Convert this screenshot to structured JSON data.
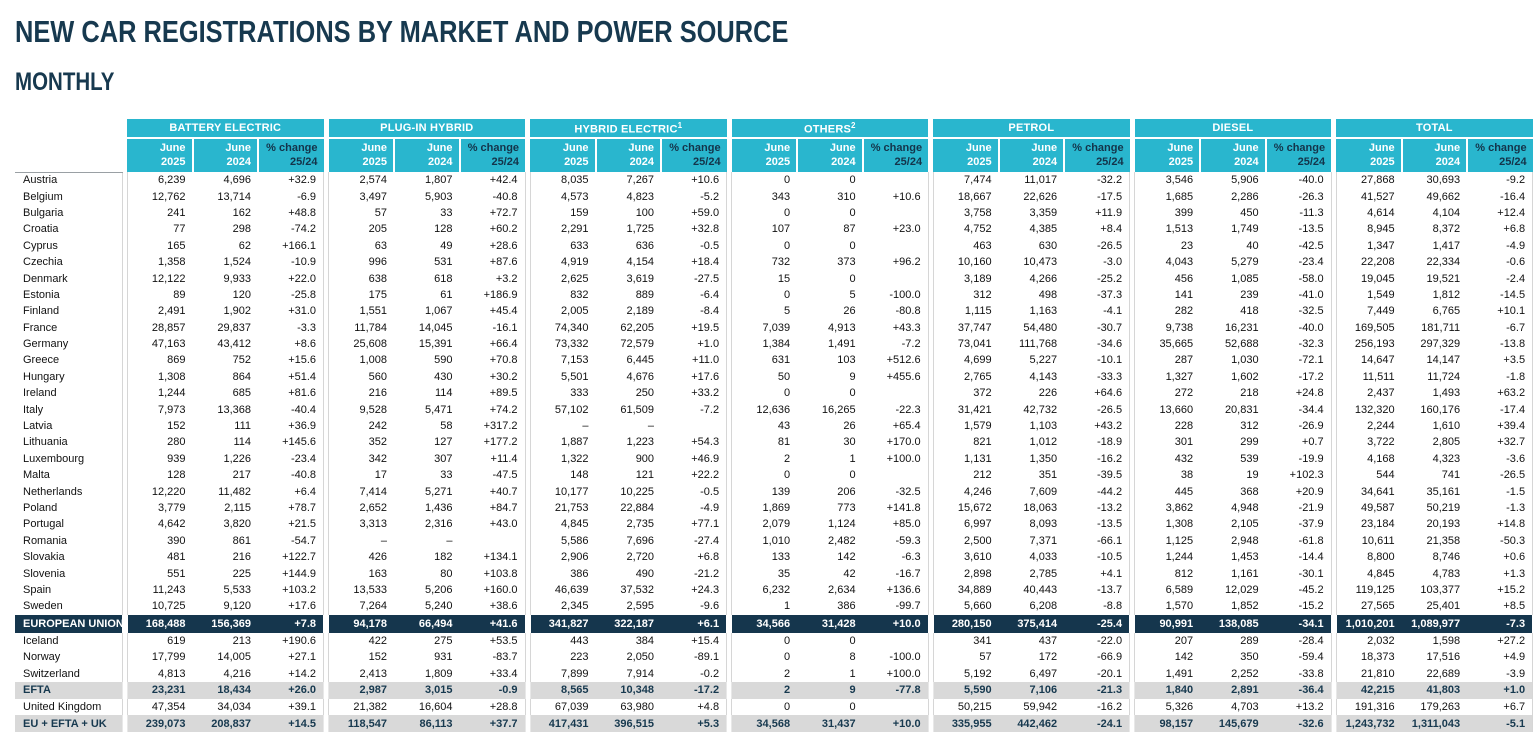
{
  "title": "NEW CAR REGISTRATIONS BY MARKET AND POWER SOURCE",
  "subtitle": "MONTHLY",
  "colors": {
    "teal": "#29b6ce",
    "navy": "#15364d",
    "band_gray": "#d9d9d9"
  },
  "table": {
    "groups": [
      {
        "label": "BATTERY ELECTRIC"
      },
      {
        "label": "PLUG-IN HYBRID"
      },
      {
        "label": "HYBRID ELECTRIC",
        "sup": "1"
      },
      {
        "label": "OTHERS",
        "sup": "2"
      },
      {
        "label": "PETROL"
      },
      {
        "label": "DIESEL"
      },
      {
        "label": "TOTAL"
      }
    ],
    "subcolumns": [
      {
        "line1": "June",
        "line2": "2025",
        "style": "month"
      },
      {
        "line1": "June",
        "line2": "2024",
        "style": "month"
      },
      {
        "line1": "% change",
        "line2": "25/24",
        "style": "pct"
      }
    ],
    "rows": [
      {
        "name": "Austria",
        "type": "country",
        "values": [
          "6,239",
          "4,696",
          "+32.9",
          "2,574",
          "1,807",
          "+42.4",
          "8,035",
          "7,267",
          "+10.6",
          "0",
          "0",
          "",
          "7,474",
          "11,017",
          "-32.2",
          "3,546",
          "5,906",
          "-40.0",
          "27,868",
          "30,693",
          "-9.2"
        ]
      },
      {
        "name": "Belgium",
        "type": "country",
        "values": [
          "12,762",
          "13,714",
          "-6.9",
          "3,497",
          "5,903",
          "-40.8",
          "4,573",
          "4,823",
          "-5.2",
          "343",
          "310",
          "+10.6",
          "18,667",
          "22,626",
          "-17.5",
          "1,685",
          "2,286",
          "-26.3",
          "41,527",
          "49,662",
          "-16.4"
        ]
      },
      {
        "name": "Bulgaria",
        "type": "country",
        "values": [
          "241",
          "162",
          "+48.8",
          "57",
          "33",
          "+72.7",
          "159",
          "100",
          "+59.0",
          "0",
          "0",
          "",
          "3,758",
          "3,359",
          "+11.9",
          "399",
          "450",
          "-11.3",
          "4,614",
          "4,104",
          "+12.4"
        ]
      },
      {
        "name": "Croatia",
        "type": "country",
        "values": [
          "77",
          "298",
          "-74.2",
          "205",
          "128",
          "+60.2",
          "2,291",
          "1,725",
          "+32.8",
          "107",
          "87",
          "+23.0",
          "4,752",
          "4,385",
          "+8.4",
          "1,513",
          "1,749",
          "-13.5",
          "8,945",
          "8,372",
          "+6.8"
        ]
      },
      {
        "name": "Cyprus",
        "type": "country",
        "values": [
          "165",
          "62",
          "+166.1",
          "63",
          "49",
          "+28.6",
          "633",
          "636",
          "-0.5",
          "0",
          "0",
          "",
          "463",
          "630",
          "-26.5",
          "23",
          "40",
          "-42.5",
          "1,347",
          "1,417",
          "-4.9"
        ]
      },
      {
        "name": "Czechia",
        "type": "country",
        "values": [
          "1,358",
          "1,524",
          "-10.9",
          "996",
          "531",
          "+87.6",
          "4,919",
          "4,154",
          "+18.4",
          "732",
          "373",
          "+96.2",
          "10,160",
          "10,473",
          "-3.0",
          "4,043",
          "5,279",
          "-23.4",
          "22,208",
          "22,334",
          "-0.6"
        ]
      },
      {
        "name": "Denmark",
        "type": "country",
        "values": [
          "12,122",
          "9,933",
          "+22.0",
          "638",
          "618",
          "+3.2",
          "2,625",
          "3,619",
          "-27.5",
          "15",
          "0",
          "",
          "3,189",
          "4,266",
          "-25.2",
          "456",
          "1,085",
          "-58.0",
          "19,045",
          "19,521",
          "-2.4"
        ]
      },
      {
        "name": "Estonia",
        "type": "country",
        "values": [
          "89",
          "120",
          "-25.8",
          "175",
          "61",
          "+186.9",
          "832",
          "889",
          "-6.4",
          "0",
          "5",
          "-100.0",
          "312",
          "498",
          "-37.3",
          "141",
          "239",
          "-41.0",
          "1,549",
          "1,812",
          "-14.5"
        ]
      },
      {
        "name": "Finland",
        "type": "country",
        "values": [
          "2,491",
          "1,902",
          "+31.0",
          "1,551",
          "1,067",
          "+45.4",
          "2,005",
          "2,189",
          "-8.4",
          "5",
          "26",
          "-80.8",
          "1,115",
          "1,163",
          "-4.1",
          "282",
          "418",
          "-32.5",
          "7,449",
          "6,765",
          "+10.1"
        ]
      },
      {
        "name": "France",
        "type": "country",
        "values": [
          "28,857",
          "29,837",
          "-3.3",
          "11,784",
          "14,045",
          "-16.1",
          "74,340",
          "62,205",
          "+19.5",
          "7,039",
          "4,913",
          "+43.3",
          "37,747",
          "54,480",
          "-30.7",
          "9,738",
          "16,231",
          "-40.0",
          "169,505",
          "181,711",
          "-6.7"
        ]
      },
      {
        "name": "Germany",
        "type": "country",
        "values": [
          "47,163",
          "43,412",
          "+8.6",
          "25,608",
          "15,391",
          "+66.4",
          "73,332",
          "72,579",
          "+1.0",
          "1,384",
          "1,491",
          "-7.2",
          "73,041",
          "111,768",
          "-34.6",
          "35,665",
          "52,688",
          "-32.3",
          "256,193",
          "297,329",
          "-13.8"
        ]
      },
      {
        "name": "Greece",
        "type": "country",
        "values": [
          "869",
          "752",
          "+15.6",
          "1,008",
          "590",
          "+70.8",
          "7,153",
          "6,445",
          "+11.0",
          "631",
          "103",
          "+512.6",
          "4,699",
          "5,227",
          "-10.1",
          "287",
          "1,030",
          "-72.1",
          "14,647",
          "14,147",
          "+3.5"
        ]
      },
      {
        "name": "Hungary",
        "type": "country",
        "values": [
          "1,308",
          "864",
          "+51.4",
          "560",
          "430",
          "+30.2",
          "5,501",
          "4,676",
          "+17.6",
          "50",
          "9",
          "+455.6",
          "2,765",
          "4,143",
          "-33.3",
          "1,327",
          "1,602",
          "-17.2",
          "11,511",
          "11,724",
          "-1.8"
        ]
      },
      {
        "name": "Ireland",
        "type": "country",
        "values": [
          "1,244",
          "685",
          "+81.6",
          "216",
          "114",
          "+89.5",
          "333",
          "250",
          "+33.2",
          "0",
          "0",
          "",
          "372",
          "226",
          "+64.6",
          "272",
          "218",
          "+24.8",
          "2,437",
          "1,493",
          "+63.2"
        ]
      },
      {
        "name": "Italy",
        "type": "country",
        "values": [
          "7,973",
          "13,368",
          "-40.4",
          "9,528",
          "5,471",
          "+74.2",
          "57,102",
          "61,509",
          "-7.2",
          "12,636",
          "16,265",
          "-22.3",
          "31,421",
          "42,732",
          "-26.5",
          "13,660",
          "20,831",
          "-34.4",
          "132,320",
          "160,176",
          "-17.4"
        ]
      },
      {
        "name": "Latvia",
        "type": "country",
        "values": [
          "152",
          "111",
          "+36.9",
          "242",
          "58",
          "+317.2",
          "–",
          "–",
          "",
          "43",
          "26",
          "+65.4",
          "1,579",
          "1,103",
          "+43.2",
          "228",
          "312",
          "-26.9",
          "2,244",
          "1,610",
          "+39.4"
        ]
      },
      {
        "name": "Lithuania",
        "type": "country",
        "values": [
          "280",
          "114",
          "+145.6",
          "352",
          "127",
          "+177.2",
          "1,887",
          "1,223",
          "+54.3",
          "81",
          "30",
          "+170.0",
          "821",
          "1,012",
          "-18.9",
          "301",
          "299",
          "+0.7",
          "3,722",
          "2,805",
          "+32.7"
        ]
      },
      {
        "name": "Luxembourg",
        "type": "country",
        "values": [
          "939",
          "1,226",
          "-23.4",
          "342",
          "307",
          "+11.4",
          "1,322",
          "900",
          "+46.9",
          "2",
          "1",
          "+100.0",
          "1,131",
          "1,350",
          "-16.2",
          "432",
          "539",
          "-19.9",
          "4,168",
          "4,323",
          "-3.6"
        ]
      },
      {
        "name": "Malta",
        "type": "country",
        "values": [
          "128",
          "217",
          "-40.8",
          "17",
          "33",
          "-47.5",
          "148",
          "121",
          "+22.2",
          "0",
          "0",
          "",
          "212",
          "351",
          "-39.5",
          "38",
          "19",
          "+102.3",
          "544",
          "741",
          "-26.5"
        ]
      },
      {
        "name": "Netherlands",
        "type": "country",
        "values": [
          "12,220",
          "11,482",
          "+6.4",
          "7,414",
          "5,271",
          "+40.7",
          "10,177",
          "10,225",
          "-0.5",
          "139",
          "206",
          "-32.5",
          "4,246",
          "7,609",
          "-44.2",
          "445",
          "368",
          "+20.9",
          "34,641",
          "35,161",
          "-1.5"
        ]
      },
      {
        "name": "Poland",
        "type": "country",
        "values": [
          "3,779",
          "2,115",
          "+78.7",
          "2,652",
          "1,436",
          "+84.7",
          "21,753",
          "22,884",
          "-4.9",
          "1,869",
          "773",
          "+141.8",
          "15,672",
          "18,063",
          "-13.2",
          "3,862",
          "4,948",
          "-21.9",
          "49,587",
          "50,219",
          "-1.3"
        ]
      },
      {
        "name": "Portugal",
        "type": "country",
        "values": [
          "4,642",
          "3,820",
          "+21.5",
          "3,313",
          "2,316",
          "+43.0",
          "4,845",
          "2,735",
          "+77.1",
          "2,079",
          "1,124",
          "+85.0",
          "6,997",
          "8,093",
          "-13.5",
          "1,308",
          "2,105",
          "-37.9",
          "23,184",
          "20,193",
          "+14.8"
        ]
      },
      {
        "name": "Romania",
        "type": "country",
        "values": [
          "390",
          "861",
          "-54.7",
          "–",
          "–",
          "",
          "5,586",
          "7,696",
          "-27.4",
          "1,010",
          "2,482",
          "-59.3",
          "2,500",
          "7,371",
          "-66.1",
          "1,125",
          "2,948",
          "-61.8",
          "10,611",
          "21,358",
          "-50.3"
        ]
      },
      {
        "name": "Slovakia",
        "type": "country",
        "values": [
          "481",
          "216",
          "+122.7",
          "426",
          "182",
          "+134.1",
          "2,906",
          "2,720",
          "+6.8",
          "133",
          "142",
          "-6.3",
          "3,610",
          "4,033",
          "-10.5",
          "1,244",
          "1,453",
          "-14.4",
          "8,800",
          "8,746",
          "+0.6"
        ]
      },
      {
        "name": "Slovenia",
        "type": "country",
        "values": [
          "551",
          "225",
          "+144.9",
          "163",
          "80",
          "+103.8",
          "386",
          "490",
          "-21.2",
          "35",
          "42",
          "-16.7",
          "2,898",
          "2,785",
          "+4.1",
          "812",
          "1,161",
          "-30.1",
          "4,845",
          "4,783",
          "+1.3"
        ]
      },
      {
        "name": "Spain",
        "type": "country",
        "values": [
          "11,243",
          "5,533",
          "+103.2",
          "13,533",
          "5,206",
          "+160.0",
          "46,639",
          "37,532",
          "+24.3",
          "6,232",
          "2,634",
          "+136.6",
          "34,889",
          "40,443",
          "-13.7",
          "6,589",
          "12,029",
          "-45.2",
          "119,125",
          "103,377",
          "+15.2"
        ]
      },
      {
        "name": "Sweden",
        "type": "country",
        "values": [
          "10,725",
          "9,120",
          "+17.6",
          "7,264",
          "5,240",
          "+38.6",
          "2,345",
          "2,595",
          "-9.6",
          "1",
          "386",
          "-99.7",
          "5,660",
          "6,208",
          "-8.8",
          "1,570",
          "1,852",
          "-15.2",
          "27,565",
          "25,401",
          "+8.5"
        ]
      },
      {
        "name": "EUROPEAN UNION",
        "type": "eu",
        "values": [
          "168,488",
          "156,369",
          "+7.8",
          "94,178",
          "66,494",
          "+41.6",
          "341,827",
          "322,187",
          "+6.1",
          "34,566",
          "31,428",
          "+10.0",
          "280,150",
          "375,414",
          "-25.4",
          "90,991",
          "138,085",
          "-34.1",
          "1,010,201",
          "1,089,977",
          "-7.3"
        ]
      },
      {
        "name": "Iceland",
        "type": "country",
        "values": [
          "619",
          "213",
          "+190.6",
          "422",
          "275",
          "+53.5",
          "443",
          "384",
          "+15.4",
          "0",
          "0",
          "",
          "341",
          "437",
          "-22.0",
          "207",
          "289",
          "-28.4",
          "2,032",
          "1,598",
          "+27.2"
        ]
      },
      {
        "name": "Norway",
        "type": "country",
        "values": [
          "17,799",
          "14,005",
          "+27.1",
          "152",
          "931",
          "-83.7",
          "223",
          "2,050",
          "-89.1",
          "0",
          "8",
          "-100.0",
          "57",
          "172",
          "-66.9",
          "142",
          "350",
          "-59.4",
          "18,373",
          "17,516",
          "+4.9"
        ]
      },
      {
        "name": "Switzerland",
        "type": "country",
        "values": [
          "4,813",
          "4,216",
          "+14.2",
          "2,413",
          "1,809",
          "+33.4",
          "7,899",
          "7,914",
          "-0.2",
          "2",
          "1",
          "+100.0",
          "5,192",
          "6,497",
          "-20.1",
          "1,491",
          "2,252",
          "-33.8",
          "21,810",
          "22,689",
          "-3.9"
        ]
      },
      {
        "name": "EFTA",
        "type": "band",
        "values": [
          "23,231",
          "18,434",
          "+26.0",
          "2,987",
          "3,015",
          "-0.9",
          "8,565",
          "10,348",
          "-17.2",
          "2",
          "9",
          "-77.8",
          "5,590",
          "7,106",
          "-21.3",
          "1,840",
          "2,891",
          "-36.4",
          "42,215",
          "41,803",
          "+1.0"
        ]
      },
      {
        "name": "United Kingdom",
        "type": "country",
        "values": [
          "47,354",
          "34,034",
          "+39.1",
          "21,382",
          "16,604",
          "+28.8",
          "67,039",
          "63,980",
          "+4.8",
          "0",
          "0",
          "",
          "50,215",
          "59,942",
          "-16.2",
          "5,326",
          "4,703",
          "+13.2",
          "191,316",
          "179,263",
          "+6.7"
        ]
      },
      {
        "name": "EU + EFTA + UK",
        "type": "band",
        "values": [
          "239,073",
          "208,837",
          "+14.5",
          "118,547",
          "86,113",
          "+37.7",
          "417,431",
          "396,515",
          "+5.3",
          "34,568",
          "31,437",
          "+10.0",
          "335,955",
          "442,462",
          "-24.1",
          "98,157",
          "145,679",
          "-32.6",
          "1,243,732",
          "1,311,043",
          "-5.1"
        ]
      }
    ]
  }
}
